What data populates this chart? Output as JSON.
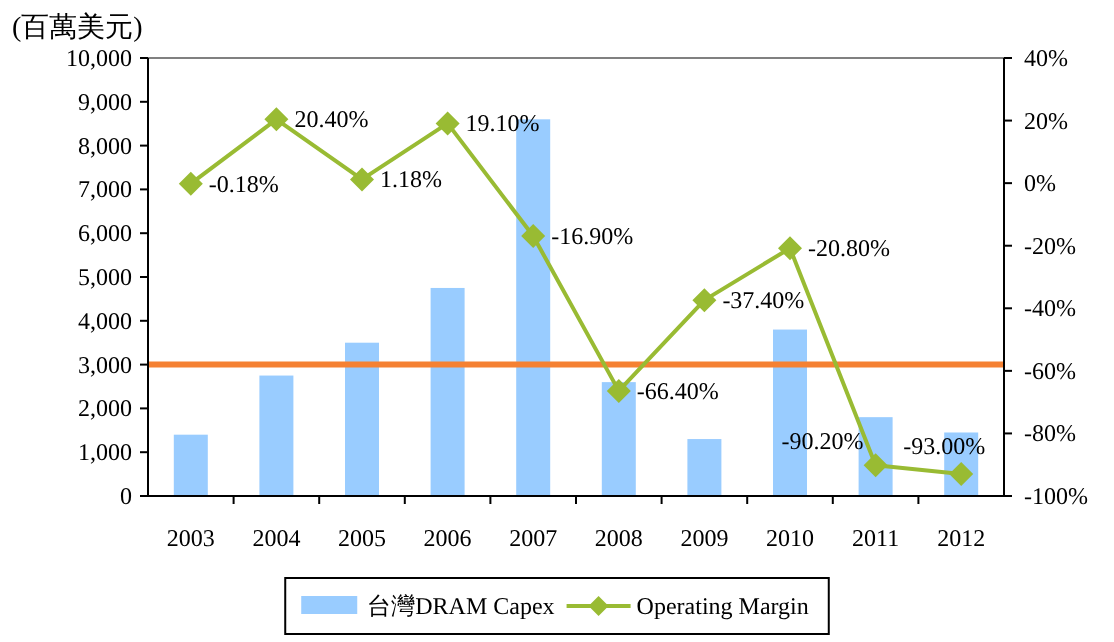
{
  "chart_data": {
    "type": "bar",
    "ylabel": "(百萬美元)",
    "categories": [
      "2003",
      "2004",
      "2005",
      "2006",
      "2007",
      "2008",
      "2009",
      "2010",
      "2011",
      "2012"
    ],
    "series": [
      {
        "name": "台灣DRAM Capex",
        "color": "#99ccff",
        "values": [
          1400,
          2750,
          3500,
          4750,
          8600,
          2600,
          1300,
          3800,
          1800,
          1450
        ]
      },
      {
        "name": "Operating Margin",
        "type": "line",
        "axis": "y2",
        "color": "#99bb33",
        "marker": "diamond",
        "values": [
          -0.18,
          20.4,
          1.18,
          19.1,
          -16.9,
          -66.4,
          -37.4,
          -20.8,
          -90.2,
          -93.0
        ],
        "value_labels": [
          "-0.18%",
          "20.40%",
          "1.18%",
          "19.10%",
          "-16.90%",
          "-66.40%",
          "-37.40%",
          "-20.80%",
          "-90.20%",
          "-93.00%"
        ]
      }
    ],
    "ylim": [
      0,
      10000
    ],
    "yticks": [
      {
        "value": 0,
        "label": "0"
      },
      {
        "value": 1000,
        "label": "1,000"
      },
      {
        "value": 2000,
        "label": "2,000"
      },
      {
        "value": 3000,
        "label": "3,000"
      },
      {
        "value": 4000,
        "label": "4,000"
      },
      {
        "value": 5000,
        "label": "5,000"
      },
      {
        "value": 6000,
        "label": "6,000"
      },
      {
        "value": 7000,
        "label": "7,000"
      },
      {
        "value": 8000,
        "label": "8,000"
      },
      {
        "value": 9000,
        "label": "9,000"
      },
      {
        "value": 10000,
        "label": "10,000"
      }
    ],
    "y2lim": [
      -100,
      40
    ],
    "y2ticks": [
      {
        "value": -100,
        "label": "-100%"
      },
      {
        "value": -80,
        "label": "-80%"
      },
      {
        "value": -60,
        "label": "-60%"
      },
      {
        "value": -40,
        "label": "-40%"
      },
      {
        "value": -20,
        "label": "-20%"
      },
      {
        "value": 0,
        "label": "0%"
      },
      {
        "value": 20,
        "label": "20%"
      },
      {
        "value": 40,
        "label": "40%"
      }
    ],
    "ref_lines": [
      {
        "axis": "y",
        "value": 3000,
        "color": "#f58133",
        "line_style": "solid"
      }
    ],
    "legend": "bottom",
    "grid": false
  }
}
